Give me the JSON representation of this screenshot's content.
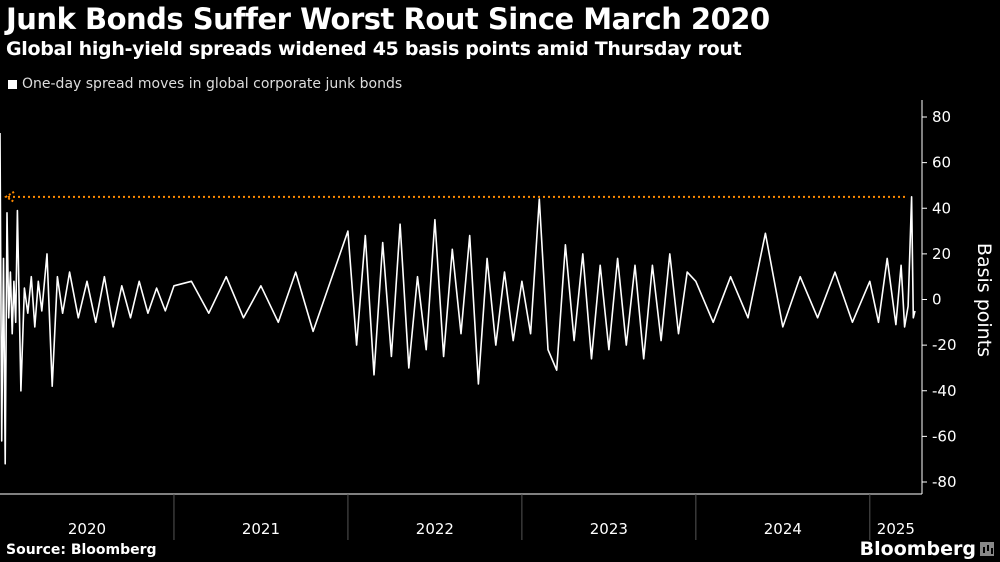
{
  "chart_data": {
    "type": "line",
    "title": "Junk Bonds Suffer Worst Rout Since March 2020",
    "subtitle": "Global high-yield spreads widened 45 basis points amid Thursday rout",
    "legend": [
      "One-day spread moves in global corporate junk bonds"
    ],
    "ylabel": "Basis points",
    "xlabel": "",
    "yticks": [
      80,
      60,
      40,
      20,
      0,
      -20,
      -40,
      -60,
      -80
    ],
    "ylim": [
      -85,
      88
    ],
    "xlim": [
      2020.0,
      2025.3
    ],
    "xticks": [
      "2020",
      "2021",
      "2022",
      "2023",
      "2024",
      "2025"
    ],
    "reference_line": {
      "value": 45,
      "color": "#ff8a00",
      "style": "dotted"
    },
    "series": [
      {
        "name": "One-day spread moves in global corporate junk bonds",
        "color": "#ffffff",
        "x": [
          2020.0,
          2020.01,
          2020.02,
          2020.03,
          2020.04,
          2020.05,
          2020.06,
          2020.07,
          2020.08,
          2020.09,
          2020.1,
          2020.12,
          2020.14,
          2020.16,
          2020.18,
          2020.2,
          2020.22,
          2020.24,
          2020.27,
          2020.3,
          2020.33,
          2020.36,
          2020.4,
          2020.45,
          2020.5,
          2020.55,
          2020.6,
          2020.65,
          2020.7,
          2020.75,
          2020.8,
          2020.85,
          2020.9,
          2020.95,
          2021.0,
          2021.1,
          2021.2,
          2021.3,
          2021.4,
          2021.5,
          2021.6,
          2021.7,
          2021.8,
          2021.9,
          2022.0,
          2022.05,
          2022.1,
          2022.15,
          2022.2,
          2022.25,
          2022.3,
          2022.35,
          2022.4,
          2022.45,
          2022.5,
          2022.55,
          2022.6,
          2022.65,
          2022.7,
          2022.75,
          2022.8,
          2022.85,
          2022.9,
          2022.95,
          2023.0,
          2023.05,
          2023.1,
          2023.15,
          2023.2,
          2023.25,
          2023.3,
          2023.35,
          2023.4,
          2023.45,
          2023.5,
          2023.55,
          2023.6,
          2023.65,
          2023.7,
          2023.75,
          2023.8,
          2023.85,
          2023.9,
          2023.95,
          2024.0,
          2024.1,
          2024.2,
          2024.3,
          2024.4,
          2024.5,
          2024.6,
          2024.7,
          2024.8,
          2024.9,
          2025.0,
          2025.05,
          2025.1,
          2025.15,
          2025.18,
          2025.2,
          2025.22,
          2025.24,
          2025.25,
          2025.26
        ],
        "values": [
          73,
          -62,
          18,
          -72,
          38,
          -8,
          12,
          -15,
          8,
          -10,
          39,
          -40,
          5,
          -6,
          10,
          -12,
          8,
          -5,
          20,
          -38,
          10,
          -6,
          12,
          -8,
          8,
          -10,
          10,
          -12,
          6,
          -8,
          8,
          -6,
          5,
          -5,
          6,
          8,
          -6,
          10,
          -8,
          6,
          -10,
          12,
          -14,
          8,
          30,
          -20,
          28,
          -33,
          25,
          -25,
          33,
          -30,
          10,
          -22,
          35,
          -25,
          22,
          -15,
          28,
          -37,
          18,
          -20,
          12,
          -18,
          8,
          -15,
          44,
          -22,
          -31,
          24,
          -18,
          20,
          -26,
          15,
          -22,
          18,
          -20,
          15,
          -26,
          15,
          -18,
          20,
          -15,
          12,
          8,
          -10,
          10,
          -8,
          29,
          -12,
          10,
          -8,
          12,
          -10,
          8,
          -10,
          18,
          -11,
          15,
          -12,
          -3,
          45,
          -8,
          -5
        ]
      }
    ]
  },
  "footer": {
    "source": "Source: Bloomberg",
    "brand": "Bloomberg"
  }
}
